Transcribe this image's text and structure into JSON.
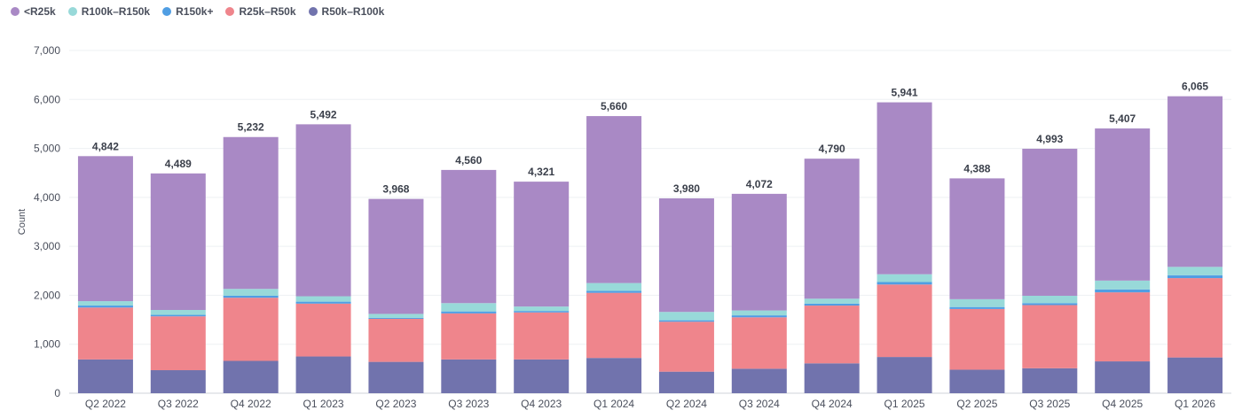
{
  "chart_data": {
    "type": "bar",
    "stacked": true,
    "categories": [
      "Q2 2022",
      "Q3 2022",
      "Q4 2022",
      "Q1 2023",
      "Q2 2023",
      "Q3 2023",
      "Q4 2023",
      "Q1 2024",
      "Q2 2024",
      "Q3 2024",
      "Q4 2024",
      "Q1 2025",
      "Q2 2025",
      "Q3 2025",
      "Q4 2025",
      "Q1 2026"
    ],
    "ylabel": "Count",
    "ylim": [
      0,
      7000
    ],
    "yticks": [
      0,
      1000,
      2000,
      3000,
      4000,
      5000,
      6000,
      7000
    ],
    "ytick_labels": [
      "0",
      "1,000",
      "2,000",
      "3,000",
      "4,000",
      "5,000",
      "6,000",
      "7,000"
    ],
    "grid": true,
    "legend_position": "top-left",
    "totals": [
      4842,
      4489,
      5232,
      5492,
      3968,
      4560,
      4321,
      5660,
      3980,
      4072,
      4790,
      5941,
      4388,
      4993,
      5407,
      6065
    ],
    "total_labels": [
      "4,842",
      "4,489",
      "5,232",
      "5,492",
      "3,968",
      "4,560",
      "4,321",
      "5,660",
      "3,980",
      "4,072",
      "4,790",
      "5,941",
      "4,388",
      "4,993",
      "5,407",
      "6,065"
    ],
    "series": [
      {
        "name": "R50k–R100k",
        "color": "#7173ad",
        "values": [
          690,
          470,
          660,
          750,
          640,
          690,
          690,
          720,
          440,
          500,
          610,
          740,
          480,
          510,
          650,
          730
        ]
      },
      {
        "name": "R25k–R50k",
        "color": "#ef858c",
        "values": [
          1060,
          1100,
          1290,
          1080,
          880,
          940,
          960,
          1330,
          1020,
          1050,
          1180,
          1480,
          1240,
          1290,
          1410,
          1620
        ]
      },
      {
        "name": "R150k+",
        "color": "#509ee3",
        "values": [
          40,
          30,
          40,
          40,
          20,
          40,
          30,
          40,
          30,
          40,
          40,
          50,
          40,
          40,
          60,
          60
        ]
      },
      {
        "name": "R100k–R150k",
        "color": "#98d9d9",
        "values": [
          90,
          100,
          140,
          110,
          80,
          170,
          90,
          160,
          170,
          100,
          100,
          160,
          160,
          150,
          180,
          170
        ]
      },
      {
        "name": "<R25k",
        "color": "#a989c5",
        "values": [
          2962,
          2789,
          3102,
          3512,
          2348,
          2720,
          2551,
          3410,
          2320,
          2382,
          2860,
          3511,
          2468,
          3003,
          3107,
          3485
        ]
      }
    ]
  },
  "legend": [
    {
      "label": "<R25k",
      "color": "#a989c5"
    },
    {
      "label": "R100k–R150k",
      "color": "#98d9d9"
    },
    {
      "label": "R150k+",
      "color": "#509ee3"
    },
    {
      "label": "R25k–R50k",
      "color": "#ef858c"
    },
    {
      "label": "R50k–R100k",
      "color": "#7173ad"
    }
  ]
}
